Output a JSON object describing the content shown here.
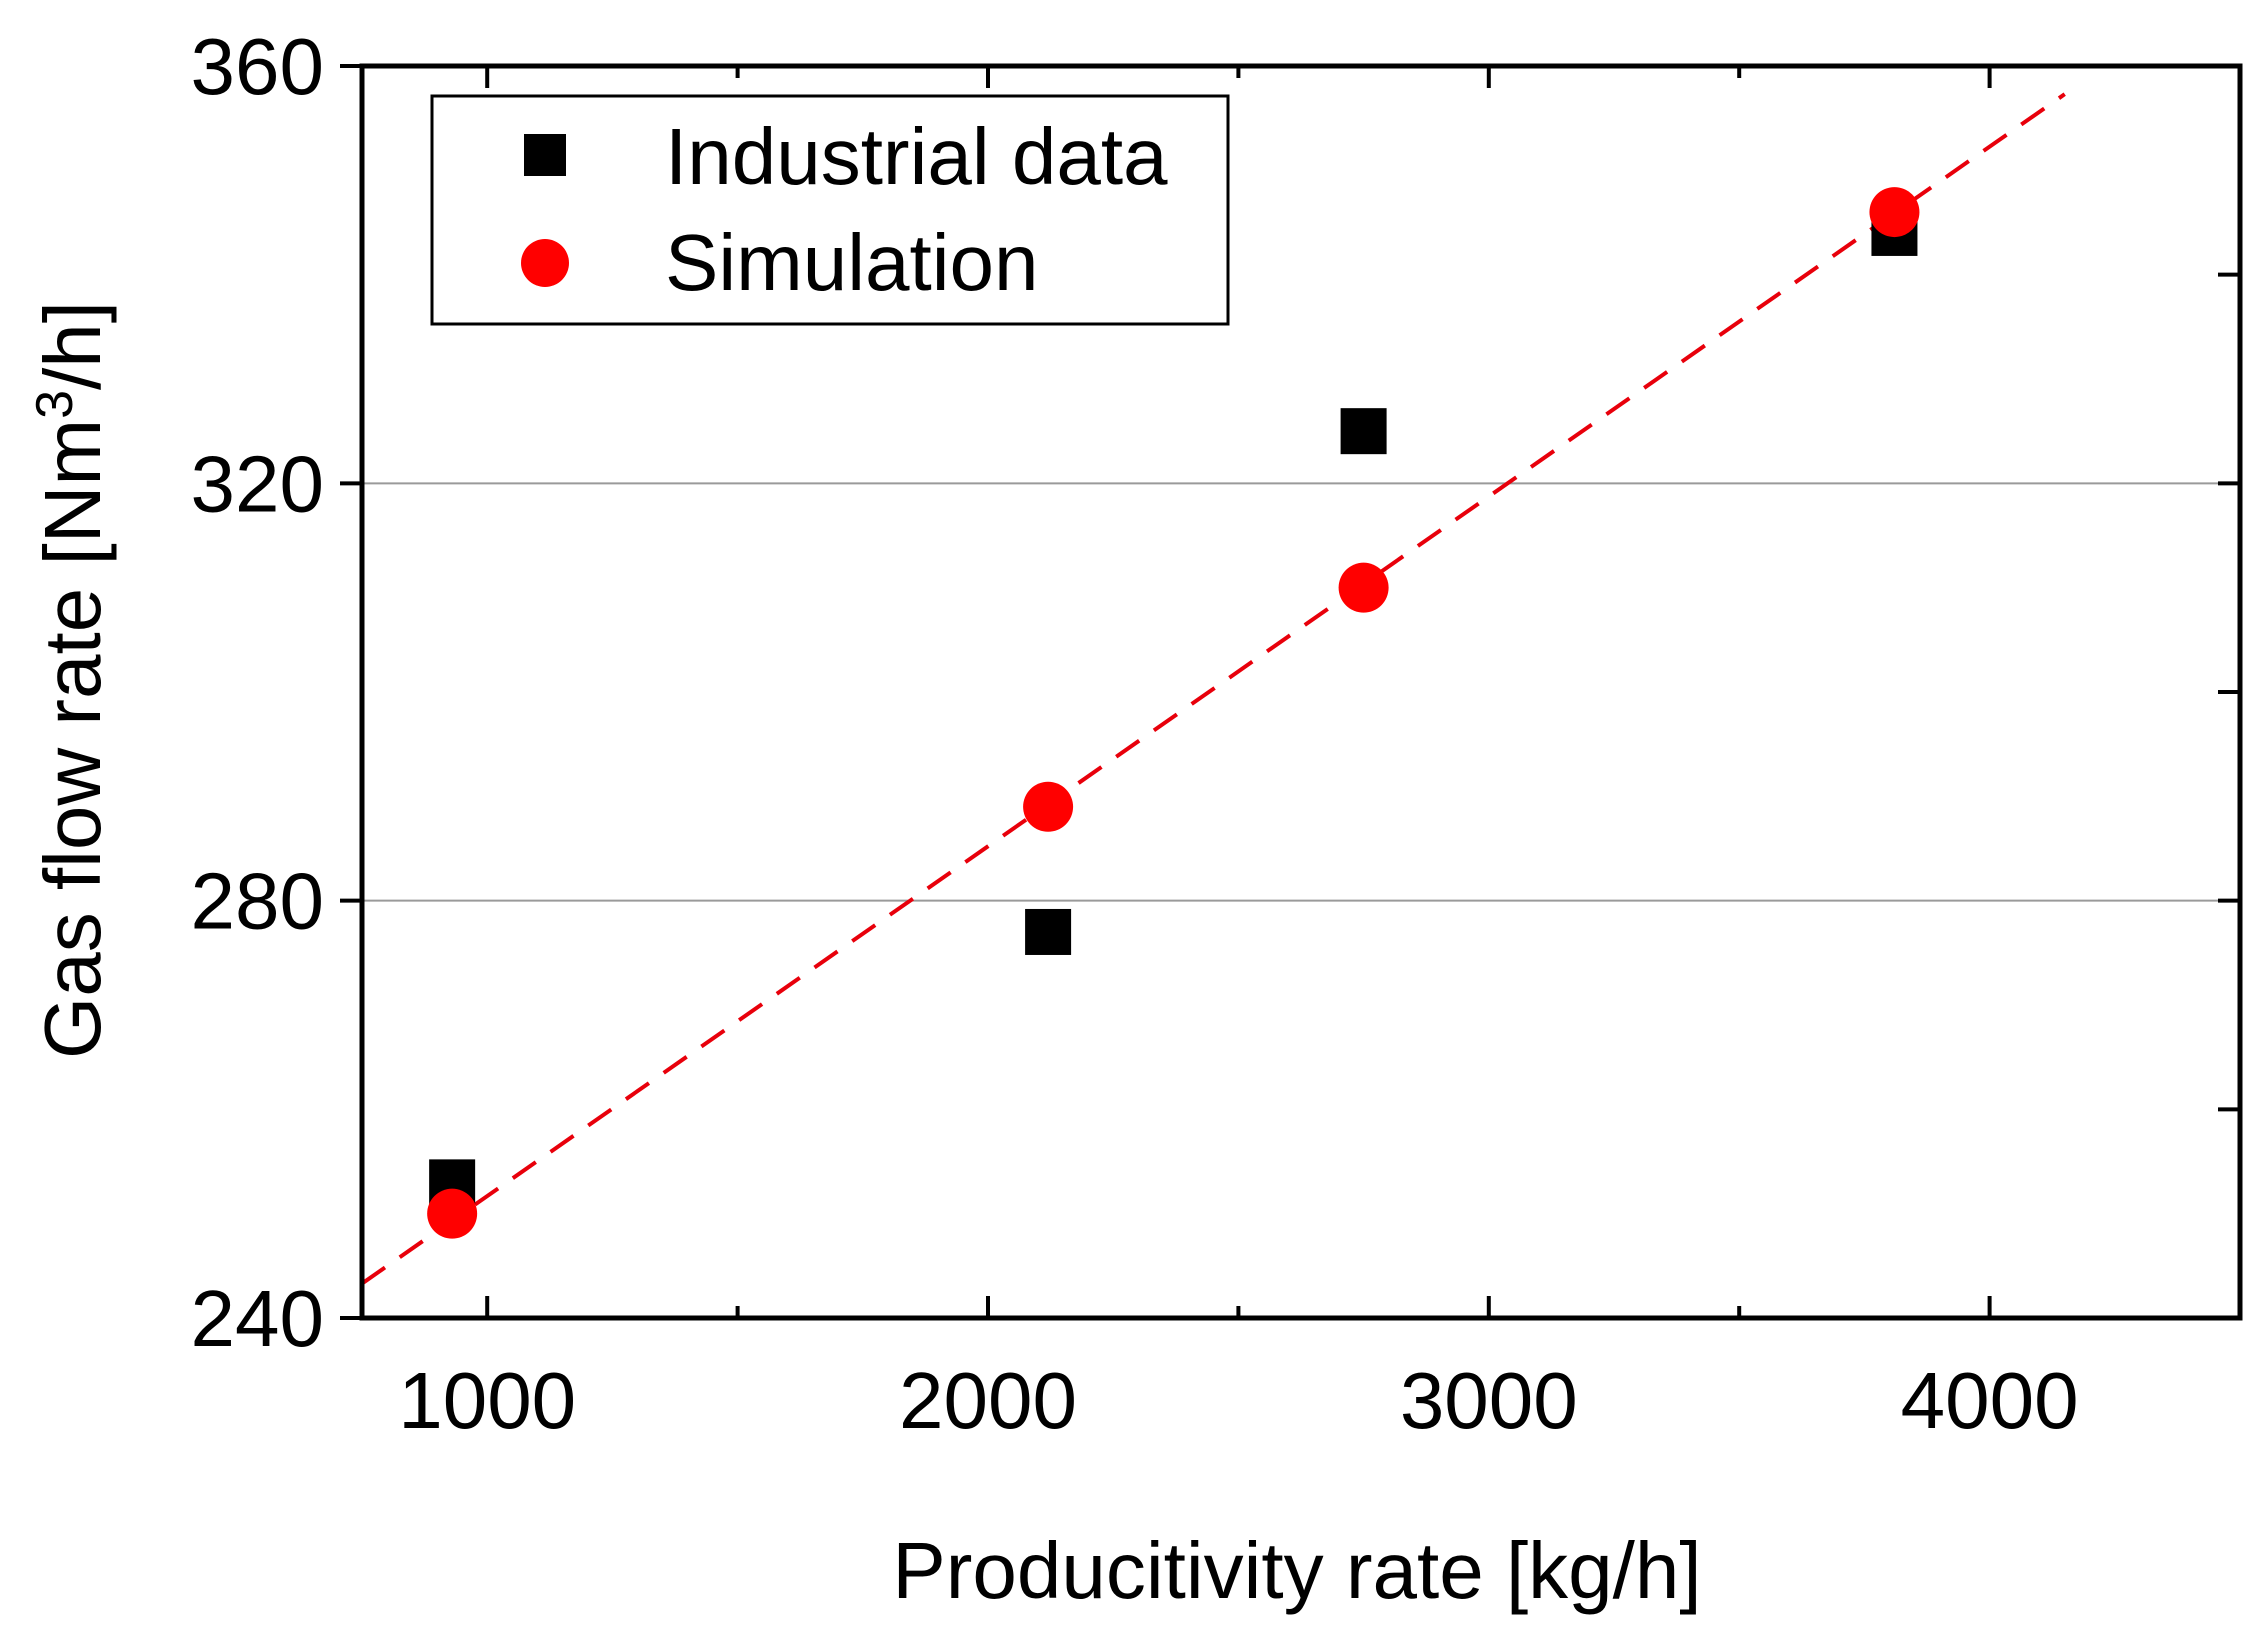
{
  "chart_data": {
    "type": "scatter",
    "xlabel": "Producitivity rate [kg/h]",
    "ylabel": {
      "main": "Gas flow rate [Nm",
      "superscript": "3",
      "suffix": "/h]"
    },
    "xlim": [
      750,
      4500
    ],
    "ylim": [
      240,
      360
    ],
    "xticks": [
      1000,
      2000,
      3000,
      4000
    ],
    "xticks_minor": [
      1500,
      2500,
      3500
    ],
    "yticks": [
      240,
      280,
      320,
      360
    ],
    "yticks_minor": [
      260,
      300,
      340
    ],
    "grid": {
      "horizontal_at": [
        280,
        320
      ],
      "color": "#9a9a9a"
    },
    "legend": {
      "position": "top-left",
      "entries": [
        "Industrial data",
        "Simulation"
      ]
    },
    "series": [
      {
        "name": "Industrial data",
        "marker": "square",
        "color": "#000000",
        "points": [
          {
            "x": 930,
            "y": 253
          },
          {
            "x": 2120,
            "y": 277
          },
          {
            "x": 2750,
            "y": 325
          },
          {
            "x": 3810,
            "y": 344
          }
        ]
      },
      {
        "name": "Simulation",
        "marker": "circle",
        "color": "#ff0000",
        "points": [
          {
            "x": 930,
            "y": 250
          },
          {
            "x": 2120,
            "y": 289
          },
          {
            "x": 2750,
            "y": 310
          },
          {
            "x": 3810,
            "y": 346
          }
        ]
      }
    ],
    "fit_line": {
      "style": "dashed",
      "color": "#e8000b",
      "x": [
        750,
        4150
      ],
      "y": [
        243.3,
        357.3
      ]
    }
  }
}
